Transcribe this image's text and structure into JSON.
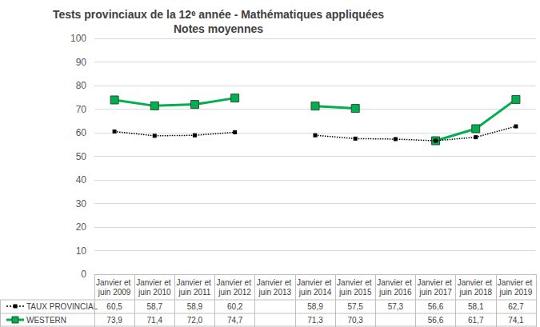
{
  "chart_data": {
    "type": "line",
    "title": "Tests provinciaux de la 12ᵉ année - Mathématiques appliquées",
    "subtitle": "Notes moyennes",
    "categories": [
      "Janvier et juin 2009",
      "Janvier et juin 2010",
      "Janvier et juin 2011",
      "Janvier et juin 2012",
      "Janvier et juin 2013",
      "Janvier et juin 2014",
      "Janvier et juin 2015",
      "Janvier et juin 2016",
      "Janvier et juin 2017",
      "Janvier et juin 2018",
      "Janvier et juin 2019"
    ],
    "series": [
      {
        "name": "TAUX PROVINCIAL",
        "color": "#000000",
        "marker": "square",
        "line_style": "dotted",
        "values": [
          60.5,
          58.7,
          58.9,
          60.2,
          null,
          58.9,
          57.5,
          57.3,
          56.6,
          58.1,
          62.7
        ],
        "value_labels": [
          "60,5",
          "58,7",
          "58,9",
          "60,2",
          null,
          "58,9",
          "57,5",
          "57,3",
          "56,6",
          "58,1",
          "62,7"
        ]
      },
      {
        "name": "WESTERN",
        "color": "#00b050",
        "marker": "square",
        "line_style": "solid",
        "values": [
          73.9,
          71.4,
          72.0,
          74.7,
          null,
          71.3,
          70.3,
          null,
          56.6,
          61.7,
          74.1
        ],
        "value_labels": [
          "73,9",
          "71,4",
          "72,0",
          "74,7",
          null,
          "71,3",
          "70,3",
          null,
          "56,6",
          "61,7",
          "74,1"
        ]
      }
    ],
    "ylim": [
      0,
      100
    ],
    "yticks": [
      0,
      10,
      20,
      30,
      40,
      50,
      60,
      70,
      80,
      90,
      100
    ],
    "grid": true
  }
}
